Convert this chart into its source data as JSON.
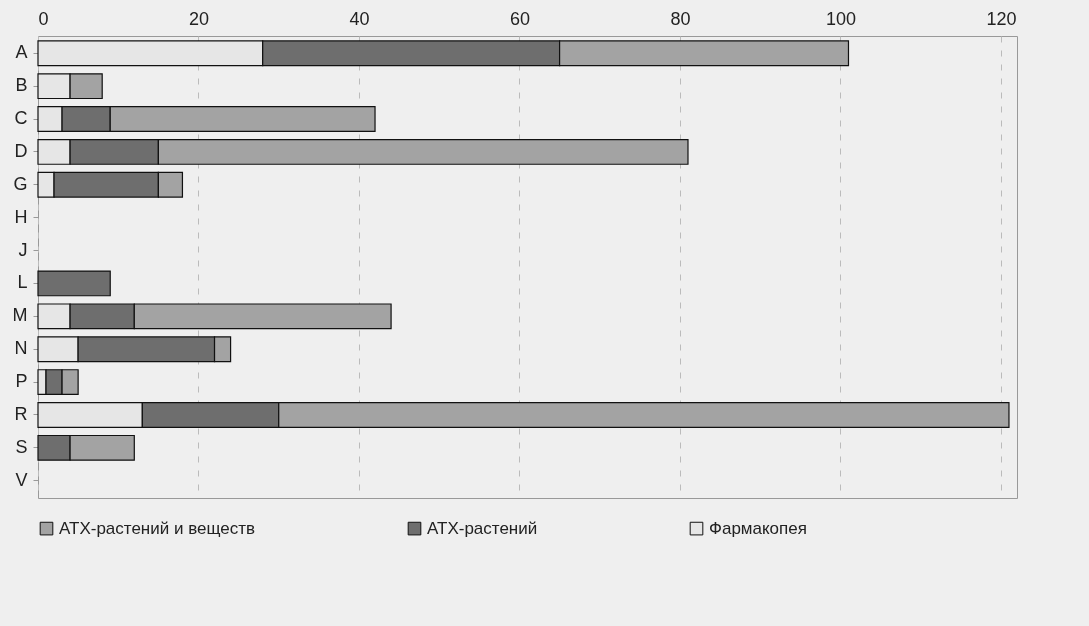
{
  "chart_data": {
    "type": "bar",
    "orientation": "horizontal",
    "stacked": true,
    "categories": [
      "A",
      "B",
      "C",
      "D",
      "G",
      "H",
      "J",
      "L",
      "M",
      "N",
      "P",
      "R",
      "S",
      "V"
    ],
    "series": [
      {
        "name": "Фармакопея",
        "color": "#e6e6e6",
        "values": [
          28,
          4,
          3,
          4,
          2,
          null,
          null,
          null,
          4,
          5,
          1,
          13,
          null,
          null
        ]
      },
      {
        "name": "АТХ-растений",
        "color": "#6e6e6e",
        "values": [
          37,
          null,
          6,
          11,
          13,
          null,
          null,
          9,
          8,
          17,
          2,
          17,
          4,
          null
        ]
      },
      {
        "name": "АТХ-растений и веществ",
        "color": "#a3a3a3",
        "values": [
          36,
          4,
          33,
          66,
          3,
          null,
          null,
          null,
          32,
          2,
          2,
          91,
          8,
          null
        ]
      }
    ],
    "xlim": [
      0,
      122
    ],
    "xticks": [
      0,
      20,
      40,
      60,
      80,
      100,
      120
    ],
    "grid": "x",
    "legend": "bottom"
  }
}
